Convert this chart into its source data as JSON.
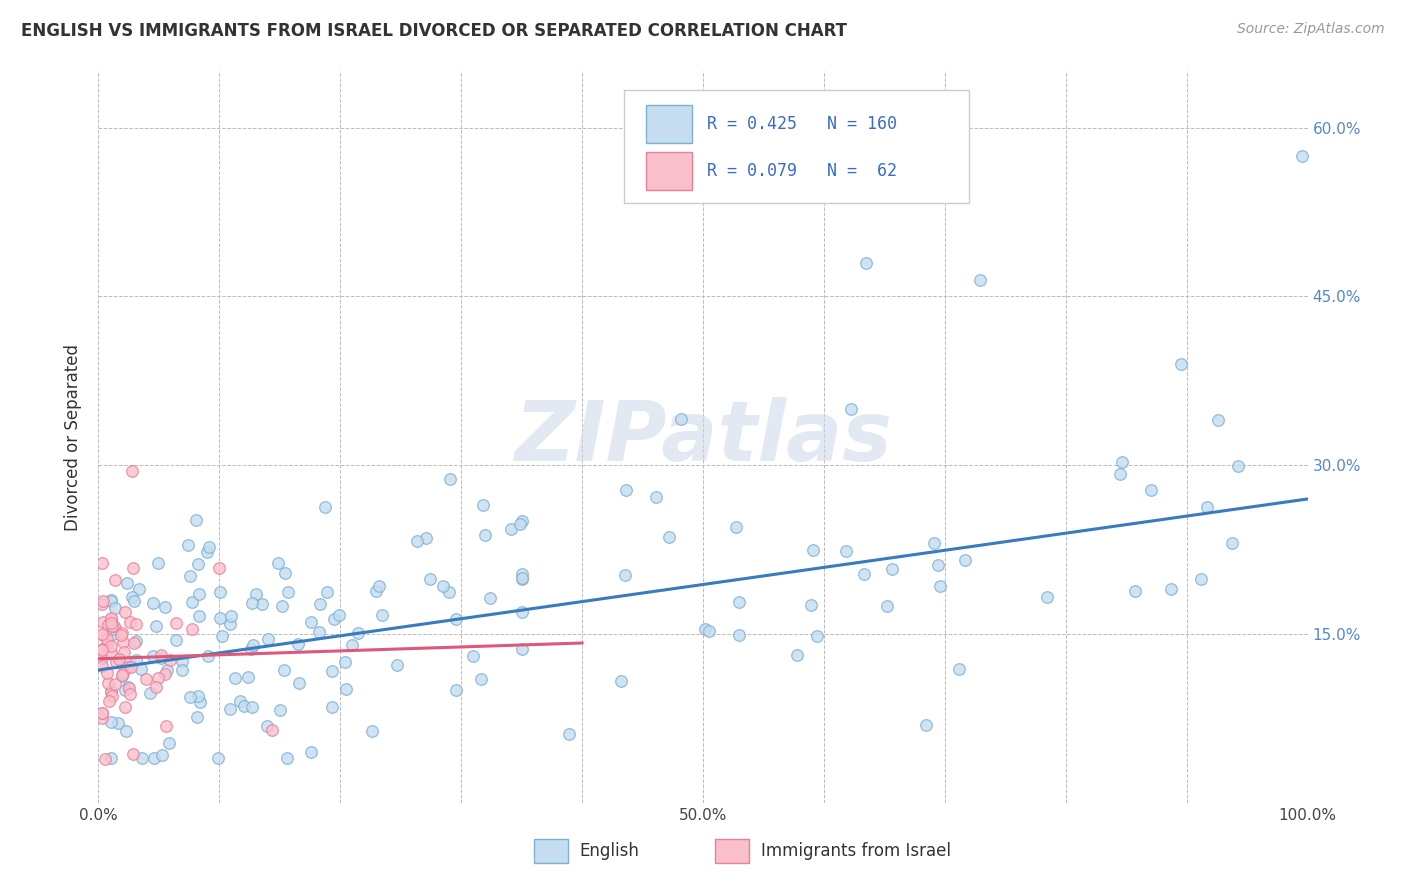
{
  "title": "ENGLISH VS IMMIGRANTS FROM ISRAEL DIVORCED OR SEPARATED CORRELATION CHART",
  "source": "Source: ZipAtlas.com",
  "ylabel": "Divorced or Separated",
  "xlabel_english": "English",
  "xlabel_israel": "Immigrants from Israel",
  "watermark": "ZIPatlas",
  "legend_r1": "R = 0.425",
  "legend_n1": "N = 160",
  "legend_r2": "R = 0.079",
  "legend_n2": "N =  62",
  "color_english_face": "#c5ddf0",
  "color_english_edge": "#7ab0d4",
  "color_israel_face": "#f9c0cc",
  "color_israel_edge": "#e8809a",
  "line_color_english": "#3a7bbf",
  "line_color_israel": "#e05878",
  "right_tick_color": "#5588cc",
  "xlim": [
    0.0,
    1.0
  ],
  "ylim": [
    0.0,
    0.65
  ],
  "ytick_vals": [
    0.0,
    0.15,
    0.3,
    0.45,
    0.6
  ],
  "xtick_vals": [
    0.0,
    0.1,
    0.2,
    0.3,
    0.4,
    0.5,
    0.6,
    0.7,
    0.8,
    0.9,
    1.0
  ],
  "right_ytick_labels": [
    "",
    "15.0%",
    "30.0%",
    "45.0%",
    "60.0%"
  ],
  "xtick_labels": [
    "0.0%",
    "",
    "",
    "",
    "",
    "50.0%",
    "",
    "",
    "",
    "",
    "100.0%"
  ],
  "eng_line_x0": 0.0,
  "eng_line_x1": 1.0,
  "eng_line_y0": 0.118,
  "eng_line_y1": 0.27,
  "isr_line_x0": 0.0,
  "isr_line_x1": 0.4,
  "isr_line_y0": 0.128,
  "isr_line_y1": 0.142
}
